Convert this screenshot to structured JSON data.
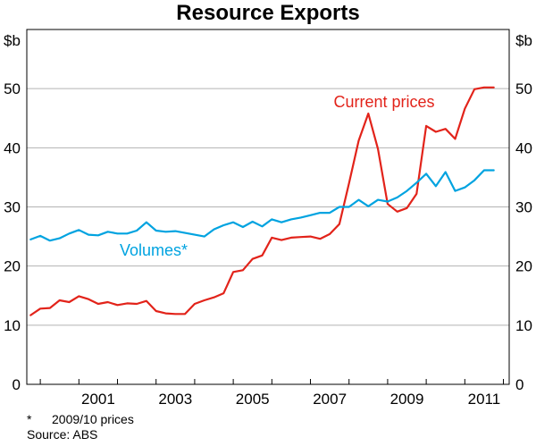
{
  "chart_data": {
    "type": "line",
    "title": "Resource Exports",
    "ylabel_left": "$b",
    "ylabel_right": "$b",
    "ylim": [
      0,
      60
    ],
    "yticks": [
      0,
      10,
      20,
      30,
      40,
      50
    ],
    "xlim": [
      1999.65,
      2012.15
    ],
    "xticks": [
      2001,
      2003,
      2005,
      2007,
      2009,
      2011
    ],
    "xtick_labels": [
      "2001",
      "2003",
      "2005",
      "2007",
      "2009",
      "2011"
    ],
    "grid": "horizontal",
    "series": [
      {
        "name": "Current prices",
        "color": "#e2231a",
        "x": [
          1999.75,
          2000.0,
          2000.25,
          2000.5,
          2000.75,
          2001.0,
          2001.25,
          2001.5,
          2001.75,
          2002.0,
          2002.25,
          2002.5,
          2002.75,
          2003.0,
          2003.25,
          2003.5,
          2003.75,
          2004.0,
          2004.25,
          2004.5,
          2004.75,
          2005.0,
          2005.25,
          2005.5,
          2005.75,
          2006.0,
          2006.25,
          2006.5,
          2006.75,
          2007.0,
          2007.25,
          2007.5,
          2007.75,
          2008.0,
          2008.25,
          2008.5,
          2008.75,
          2009.0,
          2009.25,
          2009.5,
          2009.75,
          2010.0,
          2010.25,
          2010.5,
          2010.75,
          2011.0,
          2011.25,
          2011.5,
          2011.75
        ],
        "values": [
          11.7,
          12.8,
          12.9,
          14.2,
          13.9,
          14.9,
          14.4,
          13.6,
          13.9,
          13.4,
          13.7,
          13.6,
          14.1,
          12.4,
          12.0,
          11.9,
          11.9,
          13.6,
          14.2,
          14.7,
          15.4,
          19.0,
          19.3,
          21.2,
          21.8,
          24.8,
          24.4,
          24.8,
          24.9,
          25.0,
          24.6,
          25.4,
          27.1,
          34.0,
          41.2,
          45.8,
          39.8,
          30.5,
          29.2,
          29.8,
          32.2,
          43.7,
          42.7,
          43.2,
          41.5,
          46.6,
          49.9,
          50.2,
          50.2
        ],
        "label": "Current prices"
      },
      {
        "name": "Volumes*",
        "color": "#00a3e0",
        "x": [
          1999.75,
          2000.0,
          2000.25,
          2000.5,
          2000.75,
          2001.0,
          2001.25,
          2001.5,
          2001.75,
          2002.0,
          2002.25,
          2002.5,
          2002.75,
          2003.0,
          2003.25,
          2003.5,
          2003.75,
          2004.0,
          2004.25,
          2004.5,
          2004.75,
          2005.0,
          2005.25,
          2005.5,
          2005.75,
          2006.0,
          2006.25,
          2006.5,
          2006.75,
          2007.0,
          2007.25,
          2007.5,
          2007.75,
          2008.0,
          2008.25,
          2008.5,
          2008.75,
          2009.0,
          2009.25,
          2009.5,
          2009.75,
          2010.0,
          2010.25,
          2010.5,
          2010.75,
          2011.0,
          2011.25,
          2011.5,
          2011.75
        ],
        "values": [
          24.5,
          25.1,
          24.3,
          24.7,
          25.5,
          26.1,
          25.3,
          25.2,
          25.8,
          25.5,
          25.5,
          26.0,
          27.4,
          26.0,
          25.8,
          25.9,
          25.6,
          25.3,
          25.0,
          26.2,
          26.9,
          27.4,
          26.6,
          27.5,
          26.7,
          27.9,
          27.4,
          27.9,
          28.2,
          28.6,
          29.0,
          29.0,
          30.0,
          30.0,
          31.2,
          30.1,
          31.2,
          30.9,
          31.6,
          32.7,
          34.1,
          35.6,
          33.5,
          35.9,
          32.7,
          33.3,
          34.5,
          36.2,
          36.2
        ],
        "label": "Volumes*"
      }
    ],
    "footnote_mark": "*",
    "footnote": "2009/10 prices",
    "source": "Source: ABS"
  }
}
